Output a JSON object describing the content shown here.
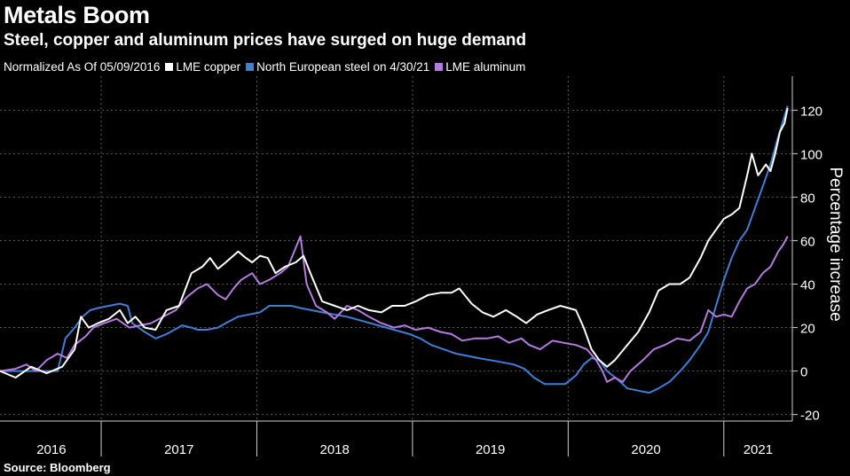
{
  "chart_data": {
    "type": "line",
    "title": "Metals Boom",
    "subtitle": "Steel, copper and aluminum prices have surged on huge demand",
    "note": "Normalized As Of 05/09/2016",
    "ylabel": "Percentage increase",
    "ylim": [
      -23,
      134
    ],
    "yticks": [
      -20,
      0,
      20,
      40,
      60,
      80,
      100,
      120
    ],
    "xlim": [
      2016.35,
      2021.44
    ],
    "year_labels": [
      {
        "label": "2016",
        "center": 2016.68
      },
      {
        "label": "2017",
        "center": 2017.5
      },
      {
        "label": "2018",
        "center": 2018.5
      },
      {
        "label": "2019",
        "center": 2019.5
      },
      {
        "label": "2020",
        "center": 2020.5
      },
      {
        "label": "2021",
        "center": 2021.22
      }
    ],
    "year_boundaries": [
      2017,
      2018,
      2019,
      2020,
      2021
    ],
    "grid": true,
    "legend_position": "top-left",
    "source": "Source: Bloomberg",
    "series": [
      {
        "name": "LME copper",
        "color": "#ffffff",
        "points": [
          [
            2016.35,
            0
          ],
          [
            2016.45,
            -3
          ],
          [
            2016.55,
            2
          ],
          [
            2016.65,
            -1
          ],
          [
            2016.75,
            2
          ],
          [
            2016.83,
            10
          ],
          [
            2016.87,
            25
          ],
          [
            2016.92,
            20
          ],
          [
            2016.98,
            22
          ],
          [
            2017.05,
            24
          ],
          [
            2017.12,
            28
          ],
          [
            2017.17,
            22
          ],
          [
            2017.22,
            25
          ],
          [
            2017.28,
            20
          ],
          [
            2017.35,
            19
          ],
          [
            2017.42,
            28
          ],
          [
            2017.5,
            30
          ],
          [
            2017.58,
            45
          ],
          [
            2017.65,
            48
          ],
          [
            2017.7,
            52
          ],
          [
            2017.75,
            47
          ],
          [
            2017.8,
            50
          ],
          [
            2017.88,
            55
          ],
          [
            2017.93,
            52
          ],
          [
            2017.97,
            50
          ],
          [
            2018.02,
            53
          ],
          [
            2018.07,
            52
          ],
          [
            2018.12,
            45
          ],
          [
            2018.18,
            48
          ],
          [
            2018.25,
            50
          ],
          [
            2018.3,
            53
          ],
          [
            2018.35,
            44
          ],
          [
            2018.42,
            32
          ],
          [
            2018.5,
            30
          ],
          [
            2018.58,
            28
          ],
          [
            2018.65,
            30
          ],
          [
            2018.72,
            28
          ],
          [
            2018.8,
            27
          ],
          [
            2018.87,
            30
          ],
          [
            2018.95,
            30
          ],
          [
            2019.02,
            32
          ],
          [
            2019.1,
            35
          ],
          [
            2019.18,
            36
          ],
          [
            2019.25,
            36
          ],
          [
            2019.3,
            38
          ],
          [
            2019.38,
            31
          ],
          [
            2019.45,
            27
          ],
          [
            2019.52,
            25
          ],
          [
            2019.6,
            28
          ],
          [
            2019.67,
            25
          ],
          [
            2019.73,
            22
          ],
          [
            2019.8,
            26
          ],
          [
            2019.87,
            28
          ],
          [
            2019.95,
            30
          ],
          [
            2020.05,
            28
          ],
          [
            2020.1,
            20
          ],
          [
            2020.15,
            10
          ],
          [
            2020.2,
            5
          ],
          [
            2020.25,
            2
          ],
          [
            2020.3,
            5
          ],
          [
            2020.38,
            12
          ],
          [
            2020.45,
            18
          ],
          [
            2020.52,
            27
          ],
          [
            2020.58,
            37
          ],
          [
            2020.65,
            40
          ],
          [
            2020.72,
            40
          ],
          [
            2020.78,
            43
          ],
          [
            2020.85,
            52
          ],
          [
            2020.9,
            60
          ],
          [
            2020.95,
            65
          ],
          [
            2021.0,
            70
          ],
          [
            2021.05,
            72
          ],
          [
            2021.1,
            75
          ],
          [
            2021.15,
            90
          ],
          [
            2021.18,
            100
          ],
          [
            2021.22,
            90
          ],
          [
            2021.27,
            95
          ],
          [
            2021.3,
            92
          ],
          [
            2021.33,
            100
          ],
          [
            2021.36,
            110
          ],
          [
            2021.39,
            114
          ],
          [
            2021.41,
            121
          ]
        ]
      },
      {
        "name": "North European steel on 4/30/21",
        "color": "#3f7fd6",
        "points": [
          [
            2016.35,
            0
          ],
          [
            2016.5,
            0
          ],
          [
            2016.6,
            0
          ],
          [
            2016.72,
            0
          ],
          [
            2016.77,
            15
          ],
          [
            2016.83,
            20
          ],
          [
            2016.88,
            25
          ],
          [
            2016.93,
            28
          ],
          [
            2016.98,
            29
          ],
          [
            2017.05,
            30
          ],
          [
            2017.12,
            31
          ],
          [
            2017.17,
            30
          ],
          [
            2017.2,
            22
          ],
          [
            2017.28,
            18
          ],
          [
            2017.35,
            15
          ],
          [
            2017.42,
            17
          ],
          [
            2017.52,
            21
          ],
          [
            2017.58,
            20
          ],
          [
            2017.62,
            19
          ],
          [
            2017.68,
            19
          ],
          [
            2017.75,
            20
          ],
          [
            2017.8,
            22
          ],
          [
            2017.88,
            25
          ],
          [
            2017.95,
            26
          ],
          [
            2018.02,
            27
          ],
          [
            2018.08,
            30
          ],
          [
            2018.15,
            30
          ],
          [
            2018.22,
            30
          ],
          [
            2018.28,
            29
          ],
          [
            2018.35,
            28
          ],
          [
            2018.42,
            27
          ],
          [
            2018.5,
            26
          ],
          [
            2018.58,
            25
          ],
          [
            2018.68,
            23
          ],
          [
            2018.78,
            21
          ],
          [
            2018.88,
            19
          ],
          [
            2018.98,
            17
          ],
          [
            2019.05,
            15
          ],
          [
            2019.12,
            12
          ],
          [
            2019.2,
            10
          ],
          [
            2019.28,
            8
          ],
          [
            2019.35,
            7
          ],
          [
            2019.42,
            6
          ],
          [
            2019.5,
            5
          ],
          [
            2019.58,
            4
          ],
          [
            2019.65,
            3
          ],
          [
            2019.72,
            1
          ],
          [
            2019.78,
            -3
          ],
          [
            2019.85,
            -6
          ],
          [
            2019.92,
            -6
          ],
          [
            2019.98,
            -6
          ],
          [
            2020.05,
            -2
          ],
          [
            2020.1,
            3
          ],
          [
            2020.15,
            6
          ],
          [
            2020.2,
            5
          ],
          [
            2020.25,
            0
          ],
          [
            2020.32,
            -4
          ],
          [
            2020.38,
            -8
          ],
          [
            2020.45,
            -9
          ],
          [
            2020.52,
            -10
          ],
          [
            2020.58,
            -8
          ],
          [
            2020.65,
            -5
          ],
          [
            2020.72,
            0
          ],
          [
            2020.78,
            5
          ],
          [
            2020.85,
            12
          ],
          [
            2020.9,
            18
          ],
          [
            2020.95,
            30
          ],
          [
            2021.0,
            42
          ],
          [
            2021.05,
            52
          ],
          [
            2021.1,
            60
          ],
          [
            2021.15,
            65
          ],
          [
            2021.2,
            75
          ],
          [
            2021.25,
            85
          ],
          [
            2021.3,
            95
          ],
          [
            2021.35,
            108
          ],
          [
            2021.38,
            115
          ],
          [
            2021.41,
            122
          ]
        ]
      },
      {
        "name": "LME aluminum",
        "color": "#b57be0",
        "points": [
          [
            2016.35,
            0
          ],
          [
            2016.45,
            1
          ],
          [
            2016.52,
            3
          ],
          [
            2016.58,
            0
          ],
          [
            2016.65,
            5
          ],
          [
            2016.72,
            8
          ],
          [
            2016.78,
            6
          ],
          [
            2016.83,
            12
          ],
          [
            2016.9,
            16
          ],
          [
            2016.95,
            20
          ],
          [
            2017.02,
            22
          ],
          [
            2017.1,
            24
          ],
          [
            2017.18,
            20
          ],
          [
            2017.25,
            21
          ],
          [
            2017.32,
            22
          ],
          [
            2017.4,
            25
          ],
          [
            2017.48,
            28
          ],
          [
            2017.55,
            34
          ],
          [
            2017.62,
            38
          ],
          [
            2017.68,
            40
          ],
          [
            2017.75,
            35
          ],
          [
            2017.8,
            33
          ],
          [
            2017.85,
            38
          ],
          [
            2017.9,
            42
          ],
          [
            2017.97,
            45
          ],
          [
            2018.02,
            40
          ],
          [
            2018.08,
            42
          ],
          [
            2018.15,
            45
          ],
          [
            2018.2,
            48
          ],
          [
            2018.28,
            62
          ],
          [
            2018.32,
            40
          ],
          [
            2018.38,
            30
          ],
          [
            2018.45,
            27
          ],
          [
            2018.5,
            24
          ],
          [
            2018.58,
            30
          ],
          [
            2018.65,
            28
          ],
          [
            2018.72,
            25
          ],
          [
            2018.8,
            22
          ],
          [
            2018.88,
            20
          ],
          [
            2018.95,
            21
          ],
          [
            2019.02,
            19
          ],
          [
            2019.1,
            20
          ],
          [
            2019.18,
            18
          ],
          [
            2019.25,
            17
          ],
          [
            2019.32,
            14
          ],
          [
            2019.4,
            15
          ],
          [
            2019.48,
            15
          ],
          [
            2019.55,
            16
          ],
          [
            2019.62,
            13
          ],
          [
            2019.7,
            15
          ],
          [
            2019.75,
            12
          ],
          [
            2019.82,
            10
          ],
          [
            2019.9,
            14
          ],
          [
            2019.97,
            13
          ],
          [
            2020.05,
            12
          ],
          [
            2020.12,
            10
          ],
          [
            2020.18,
            5
          ],
          [
            2020.22,
            0
          ],
          [
            2020.25,
            -5
          ],
          [
            2020.3,
            -3
          ],
          [
            2020.35,
            -5
          ],
          [
            2020.4,
            0
          ],
          [
            2020.48,
            5
          ],
          [
            2020.55,
            10
          ],
          [
            2020.62,
            12
          ],
          [
            2020.7,
            15
          ],
          [
            2020.78,
            14
          ],
          [
            2020.85,
            18
          ],
          [
            2020.9,
            28
          ],
          [
            2020.95,
            25
          ],
          [
            2021.0,
            26
          ],
          [
            2021.05,
            25
          ],
          [
            2021.1,
            32
          ],
          [
            2021.15,
            38
          ],
          [
            2021.2,
            40
          ],
          [
            2021.25,
            45
          ],
          [
            2021.3,
            48
          ],
          [
            2021.35,
            55
          ],
          [
            2021.38,
            58
          ],
          [
            2021.41,
            62
          ]
        ]
      }
    ]
  }
}
